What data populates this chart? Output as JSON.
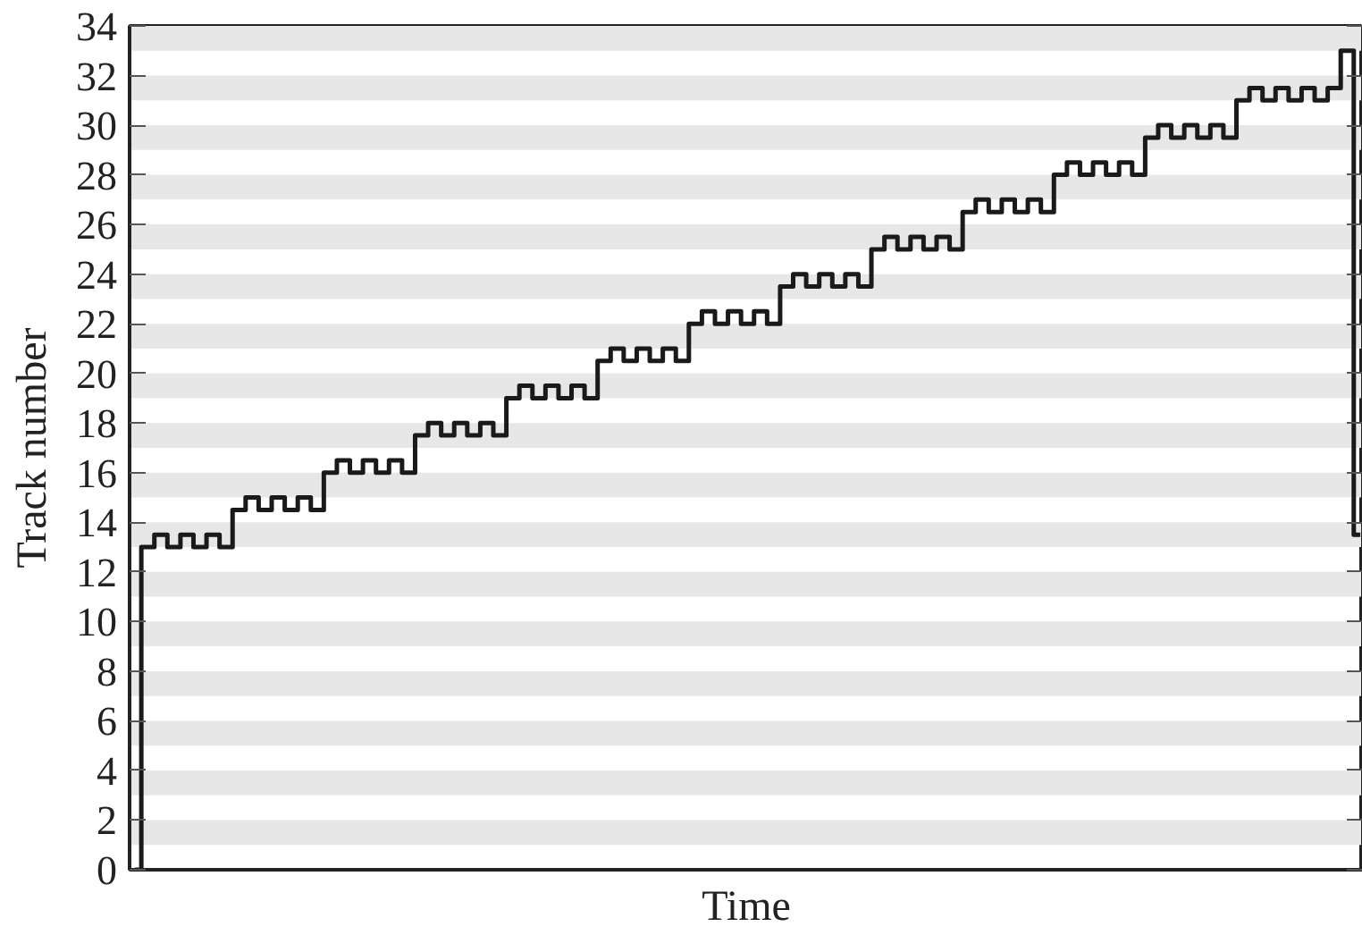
{
  "chart_data": {
    "type": "step",
    "xlabel": "Time",
    "ylabel": "Track number",
    "categories": [
      null,
      null,
      null,
      null,
      null,
      null,
      null,
      null,
      null,
      null,
      null,
      null,
      null,
      null,
      null,
      null,
      null,
      null,
      null,
      null,
      null,
      null,
      null,
      null,
      null,
      null,
      null,
      null,
      null,
      null,
      null,
      null,
      null,
      null,
      null,
      null,
      null,
      null,
      null,
      null,
      null,
      null,
      null,
      null,
      null,
      null,
      null,
      null,
      null,
      null,
      null,
      null,
      null,
      null,
      null,
      null,
      null,
      null,
      null,
      null,
      null,
      null,
      null,
      null,
      null,
      null,
      null,
      null,
      null,
      null,
      null,
      null,
      null,
      null,
      null,
      null,
      null,
      null,
      null,
      null,
      null,
      null,
      null,
      null,
      null,
      null,
      null,
      null,
      null,
      null,
      null,
      null,
      null,
      null,
      null
    ],
    "values": [
      0,
      13,
      13.5,
      13,
      13.5,
      13,
      13.5,
      13,
      14.5,
      15,
      14.5,
      15,
      14.5,
      15,
      14.5,
      16,
      16.5,
      16,
      16.5,
      16,
      16.5,
      16,
      17.5,
      18,
      17.5,
      18,
      17.5,
      18,
      17.5,
      19,
      19.5,
      19,
      19.5,
      19,
      19.5,
      19,
      20.5,
      21,
      20.5,
      21,
      20.5,
      21,
      20.5,
      22,
      22.5,
      22,
      22.5,
      22,
      22.5,
      22,
      23.5,
      24,
      23.5,
      24,
      23.5,
      24,
      23.5,
      25,
      25.5,
      25,
      25.5,
      25,
      25.5,
      25,
      26.5,
      27,
      26.5,
      27,
      26.5,
      27,
      26.5,
      28,
      28.5,
      28,
      28.5,
      28,
      28.5,
      28,
      29.5,
      30,
      29.5,
      30,
      29.5,
      30,
      29.5,
      31,
      31.5,
      31,
      31.5,
      31,
      31.5,
      31,
      31.5,
      33,
      13.5
    ],
    "color": "#1a1a1a",
    "line_style": "solid",
    "marker": "none",
    "ylim": [
      0,
      34
    ],
    "yticks": [
      0,
      2,
      4,
      6,
      8,
      10,
      12,
      14,
      16,
      18,
      20,
      22,
      24,
      26,
      28,
      30,
      32,
      34
    ],
    "tick_labels": "y",
    "bands": [
      {
        "axis": "y",
        "from": 1,
        "to": 2,
        "color": "#e6e7e6"
      },
      {
        "axis": "y",
        "from": 3,
        "to": 4,
        "color": "#e6e7e6"
      },
      {
        "axis": "y",
        "from": 5,
        "to": 6,
        "color": "#e6e7e6"
      },
      {
        "axis": "y",
        "from": 7,
        "to": 8,
        "color": "#e6e7e6"
      },
      {
        "axis": "y",
        "from": 9,
        "to": 10,
        "color": "#e6e7e6"
      },
      {
        "axis": "y",
        "from": 11,
        "to": 12,
        "color": "#e6e7e6"
      },
      {
        "axis": "y",
        "from": 13,
        "to": 14,
        "color": "#e6e7e6"
      },
      {
        "axis": "y",
        "from": 15,
        "to": 16,
        "color": "#e6e7e6"
      },
      {
        "axis": "y",
        "from": 17,
        "to": 18,
        "color": "#e6e7e6"
      },
      {
        "axis": "y",
        "from": 19,
        "to": 20,
        "color": "#e6e7e6"
      },
      {
        "axis": "y",
        "from": 21,
        "to": 22,
        "color": "#e6e7e6"
      },
      {
        "axis": "y",
        "from": 23,
        "to": 24,
        "color": "#e6e7e6"
      },
      {
        "axis": "y",
        "from": 25,
        "to": 26,
        "color": "#e6e7e6"
      },
      {
        "axis": "y",
        "from": 27,
        "to": 28,
        "color": "#e6e7e6"
      },
      {
        "axis": "y",
        "from": 29,
        "to": 30,
        "color": "#e6e7e6"
      },
      {
        "axis": "y",
        "from": 31,
        "to": 32,
        "color": "#e6e7e6"
      },
      {
        "axis": "y",
        "from": 33,
        "to": 34,
        "color": "#e6e7e6"
      }
    ]
  }
}
